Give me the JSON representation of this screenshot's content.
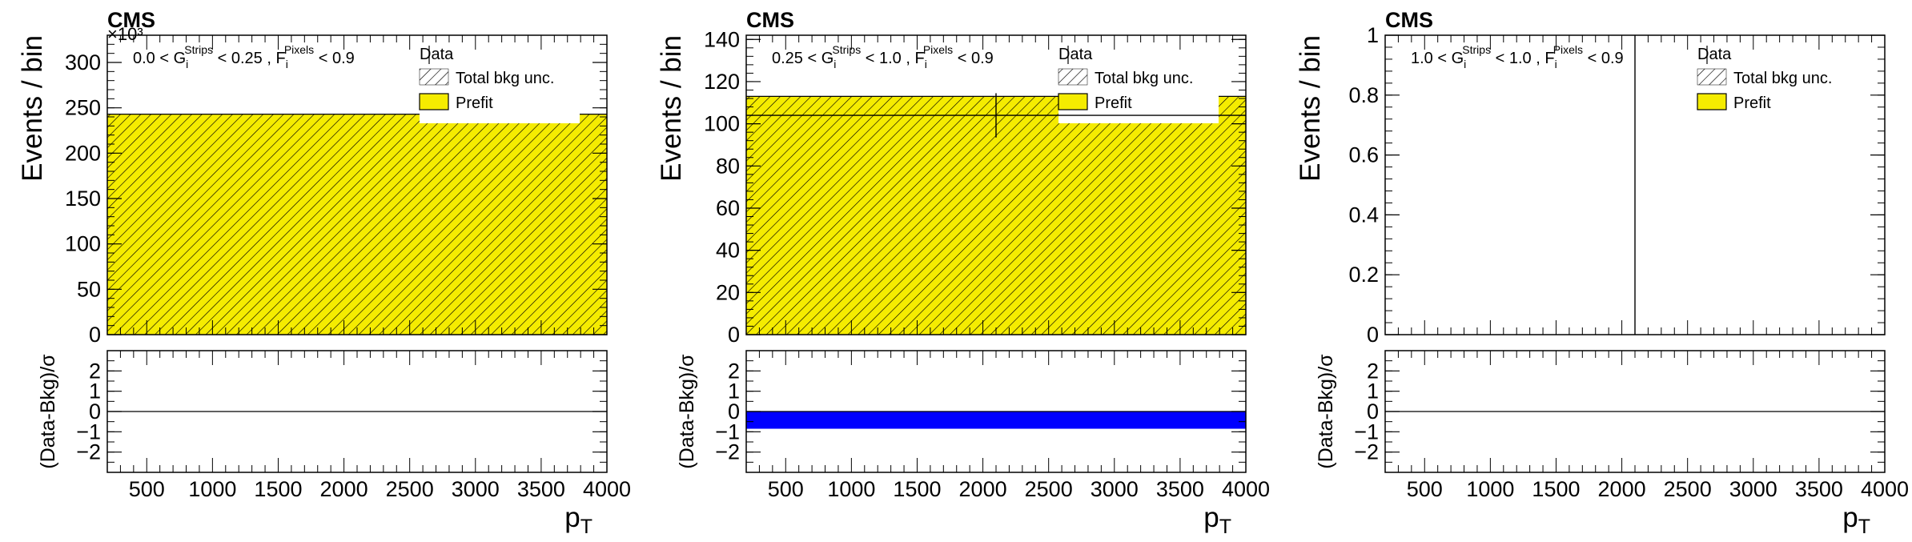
{
  "colors": {
    "prefit": "#f5ec00",
    "hatch": "#000000",
    "pull": "#0000ff",
    "frame": "#000000"
  },
  "chart_data": [
    {
      "type": "bar",
      "cms_label": "CMS",
      "exponent_label": "×10³",
      "region": {
        "g_lo": "0.0",
        "g_hi": "0.25",
        "f_hi": "0.9"
      },
      "ylabel": "Events / bin",
      "ylim": [
        0,
        330
      ],
      "yticks": [
        0,
        50,
        100,
        150,
        200,
        250,
        300
      ],
      "ytick_labels": [
        "0",
        "50",
        "100",
        "150",
        "200",
        "250",
        "300"
      ],
      "xlim": [
        200,
        4000
      ],
      "xticks": [
        500,
        1000,
        1500,
        2000,
        2500,
        3000,
        3500,
        4000
      ],
      "xtick_labels": [
        "500",
        "1000",
        "1500",
        "2000",
        "2500",
        "3000",
        "3500",
        "4000"
      ],
      "xlabel": {
        "main": "p",
        "sub": "T"
      },
      "bins": [
        [
          200,
          4000
        ]
      ],
      "prefit": [
        243
      ],
      "bkg_unc": [
        [
          243,
          243
        ]
      ],
      "data": [],
      "legend": {
        "data": "Data",
        "unc": "Total bkg unc.",
        "prefit": "Prefit"
      },
      "ratio": {
        "ylabel": "(Data-Bkg)/σ",
        "ylim": [
          -3,
          3
        ],
        "yticks": [
          -2,
          -1,
          0,
          1,
          2
        ],
        "ytick_labels": [
          "−2",
          "−1",
          "0",
          "1",
          "2"
        ],
        "band": null
      }
    },
    {
      "type": "bar",
      "cms_label": "CMS",
      "exponent_label": "",
      "region": {
        "g_lo": "0.25",
        "g_hi": "1.0",
        "f_hi": "0.9"
      },
      "ylabel": "Events / bin",
      "ylim": [
        0,
        142
      ],
      "yticks": [
        0,
        20,
        40,
        60,
        80,
        100,
        120,
        140
      ],
      "ytick_labels": [
        "0",
        "20",
        "40",
        "60",
        "80",
        "100",
        "120",
        "140"
      ],
      "xlim": [
        200,
        4000
      ],
      "xticks": [
        500,
        1000,
        1500,
        2000,
        2500,
        3000,
        3500,
        4000
      ],
      "xtick_labels": [
        "500",
        "1000",
        "1500",
        "2000",
        "2500",
        "3000",
        "3500",
        "4000"
      ],
      "xlabel": {
        "main": "p",
        "sub": "T"
      },
      "bins": [
        [
          200,
          4000
        ]
      ],
      "prefit": [
        113
      ],
      "bkg_unc": [
        [
          113,
          113
        ]
      ],
      "data": [
        {
          "x": 2100,
          "y": 104,
          "err": 10.5
        }
      ],
      "legend": {
        "data": "Data",
        "unc": "Total bkg unc.",
        "prefit": "Prefit"
      },
      "ratio": {
        "ylabel": "(Data-Bkg)/σ",
        "ylim": [
          -3,
          3
        ],
        "yticks": [
          -2,
          -1,
          0,
          1,
          2
        ],
        "ytick_labels": [
          "−2",
          "−1",
          "0",
          "1",
          "2"
        ],
        "band": [
          -0.85,
          0
        ]
      }
    },
    {
      "type": "bar",
      "cms_label": "CMS",
      "exponent_label": "",
      "region": {
        "g_lo": "1.0",
        "g_hi": "1.0",
        "f_hi": "0.9"
      },
      "ylabel": "Events / bin",
      "ylim": [
        0,
        1
      ],
      "yticks": [
        0,
        0.2,
        0.4,
        0.6,
        0.8,
        1
      ],
      "ytick_labels": [
        "0",
        "0.2",
        "0.4",
        "0.6",
        "0.8",
        "1"
      ],
      "xlim": [
        200,
        4000
      ],
      "xticks": [
        500,
        1000,
        1500,
        2000,
        2500,
        3000,
        3500,
        4000
      ],
      "xtick_labels": [
        "500",
        "1000",
        "1500",
        "2000",
        "2500",
        "3000",
        "3500",
        "4000"
      ],
      "xlabel": {
        "main": "p",
        "sub": "T"
      },
      "bins": [
        [
          200,
          4000
        ]
      ],
      "prefit": [
        0
      ],
      "bkg_unc": [
        [
          0,
          0
        ]
      ],
      "data": [
        {
          "x": 2100,
          "y": 0,
          "err": 1.9
        }
      ],
      "legend": {
        "data": "Data",
        "unc": "Total bkg unc.",
        "prefit": "Prefit"
      },
      "ratio": {
        "ylabel": "(Data-Bkg)/σ",
        "ylim": [
          -3,
          3
        ],
        "yticks": [
          -2,
          -1,
          0,
          1,
          2
        ],
        "ytick_labels": [
          "−2",
          "−1",
          "0",
          "1",
          "2"
        ],
        "band": null
      }
    }
  ]
}
